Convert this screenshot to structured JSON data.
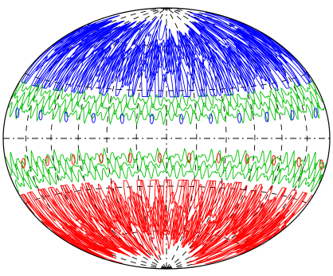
{
  "chart_data": {
    "type": "contour",
    "projection": "hammer",
    "colors": [
      "#0000ff",
      "#00c000",
      "#ff0000"
    ]
  }
}
